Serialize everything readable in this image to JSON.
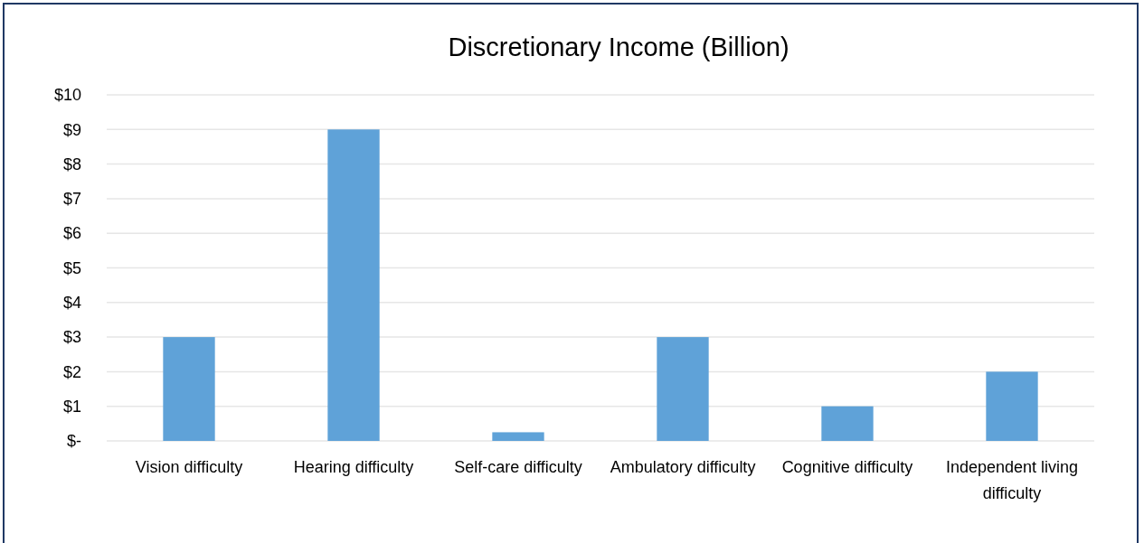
{
  "chart_data": {
    "type": "bar",
    "title": "Discretionary Income (Billion)",
    "categories": [
      "Vision difficulty",
      "Hearing difficulty",
      "Self-care difficulty",
      "Ambulatory difficulty",
      "Cognitive difficulty",
      "Independent living difficulty"
    ],
    "values": [
      3,
      9,
      0.25,
      3,
      1,
      2
    ],
    "color": "#5fa2d8",
    "ylim": [
      0,
      10
    ],
    "yticks": [
      {
        "value": 0,
        "label": "$-"
      },
      {
        "value": 1,
        "label": "$1"
      },
      {
        "value": 2,
        "label": "$2"
      },
      {
        "value": 3,
        "label": "$3"
      },
      {
        "value": 4,
        "label": "$4"
      },
      {
        "value": 5,
        "label": "$5"
      },
      {
        "value": 6,
        "label": "$6"
      },
      {
        "value": 7,
        "label": "$7"
      },
      {
        "value": 8,
        "label": "$8"
      },
      {
        "value": 9,
        "label": "$9"
      },
      {
        "value": 10,
        "label": "$10"
      }
    ],
    "grid": true
  }
}
